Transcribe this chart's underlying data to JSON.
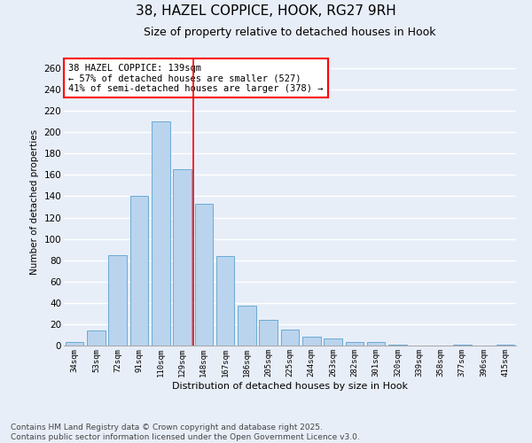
{
  "title1": "38, HAZEL COPPICE, HOOK, RG27 9RH",
  "title2": "Size of property relative to detached houses in Hook",
  "xlabel": "Distribution of detached houses by size in Hook",
  "ylabel": "Number of detached properties",
  "categories": [
    "34sqm",
    "53sqm",
    "72sqm",
    "91sqm",
    "110sqm",
    "129sqm",
    "148sqm",
    "167sqm",
    "186sqm",
    "205sqm",
    "225sqm",
    "244sqm",
    "263sqm",
    "282sqm",
    "301sqm",
    "320sqm",
    "339sqm",
    "358sqm",
    "377sqm",
    "396sqm",
    "415sqm"
  ],
  "values": [
    3,
    14,
    85,
    140,
    210,
    165,
    133,
    84,
    37,
    24,
    15,
    8,
    7,
    3,
    3,
    1,
    0,
    0,
    1,
    0,
    1
  ],
  "bar_color": "#bad4ee",
  "bar_edge_color": "#6aaad4",
  "vline_x": 5.5,
  "vline_color": "red",
  "annotation_text": "38 HAZEL COPPICE: 139sqm\n← 57% of detached houses are smaller (527)\n41% of semi-detached houses are larger (378) →",
  "annotation_box_color": "white",
  "annotation_box_edge": "red",
  "ylim": [
    0,
    270
  ],
  "yticks": [
    0,
    20,
    40,
    60,
    80,
    100,
    120,
    140,
    160,
    180,
    200,
    220,
    240,
    260
  ],
  "footer": "Contains HM Land Registry data © Crown copyright and database right 2025.\nContains public sector information licensed under the Open Government Licence v3.0.",
  "bg_color": "#e8eef8",
  "plot_bg": "#e8eef8",
  "grid_color": "white",
  "title1_fontsize": 11,
  "title2_fontsize": 9,
  "annotation_fontsize": 7.5,
  "footer_fontsize": 6.5
}
